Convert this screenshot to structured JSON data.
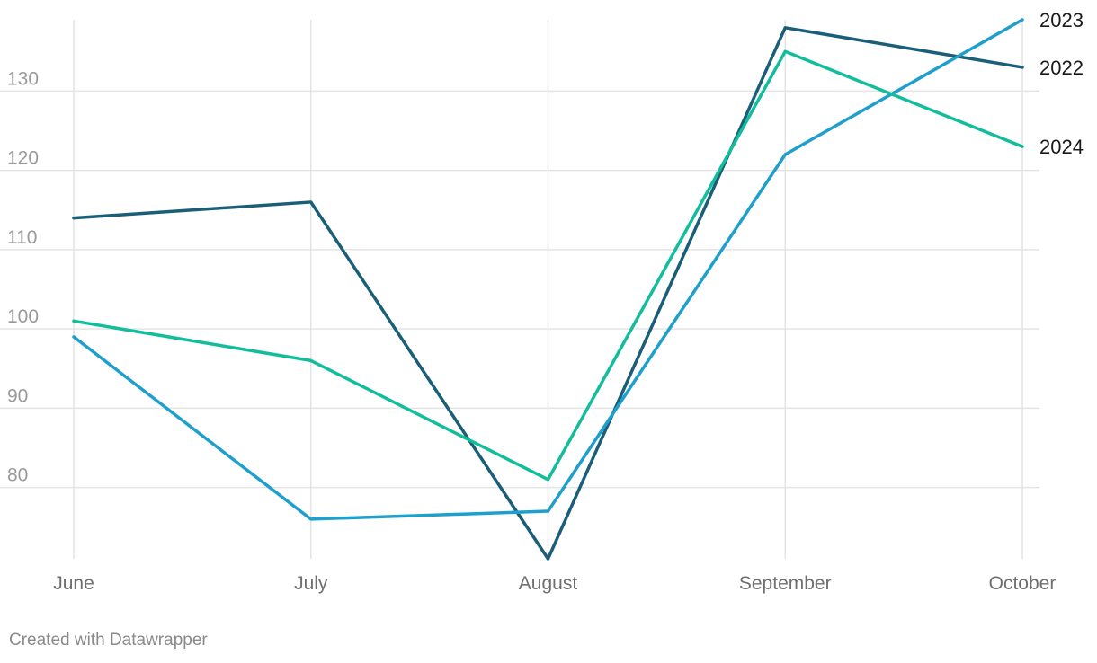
{
  "chart_data": {
    "type": "line",
    "categories": [
      "June",
      "July",
      "August",
      "September",
      "October"
    ],
    "series": [
      {
        "name": "2022",
        "color": "#1b5e78",
        "values": [
          114,
          116,
          71,
          138,
          133
        ]
      },
      {
        "name": "2023",
        "color": "#1e9fcc",
        "values": [
          99,
          76,
          77,
          122,
          139
        ]
      },
      {
        "name": "2024",
        "color": "#12bd9b",
        "values": [
          101,
          96,
          81,
          135,
          123
        ]
      }
    ],
    "y_ticks": [
      80,
      90,
      100,
      110,
      120,
      130
    ],
    "ylim": [
      71,
      139
    ],
    "grid": true,
    "legend": "direct labels at right end of lines"
  },
  "footer": {
    "credit": "Created with Datawrapper"
  },
  "colors": {
    "grid": "#e4e4e4",
    "tick_text": "#9a9a9a",
    "x_label_text": "#6f6f6f",
    "credit_text": "#8a8a8a"
  }
}
